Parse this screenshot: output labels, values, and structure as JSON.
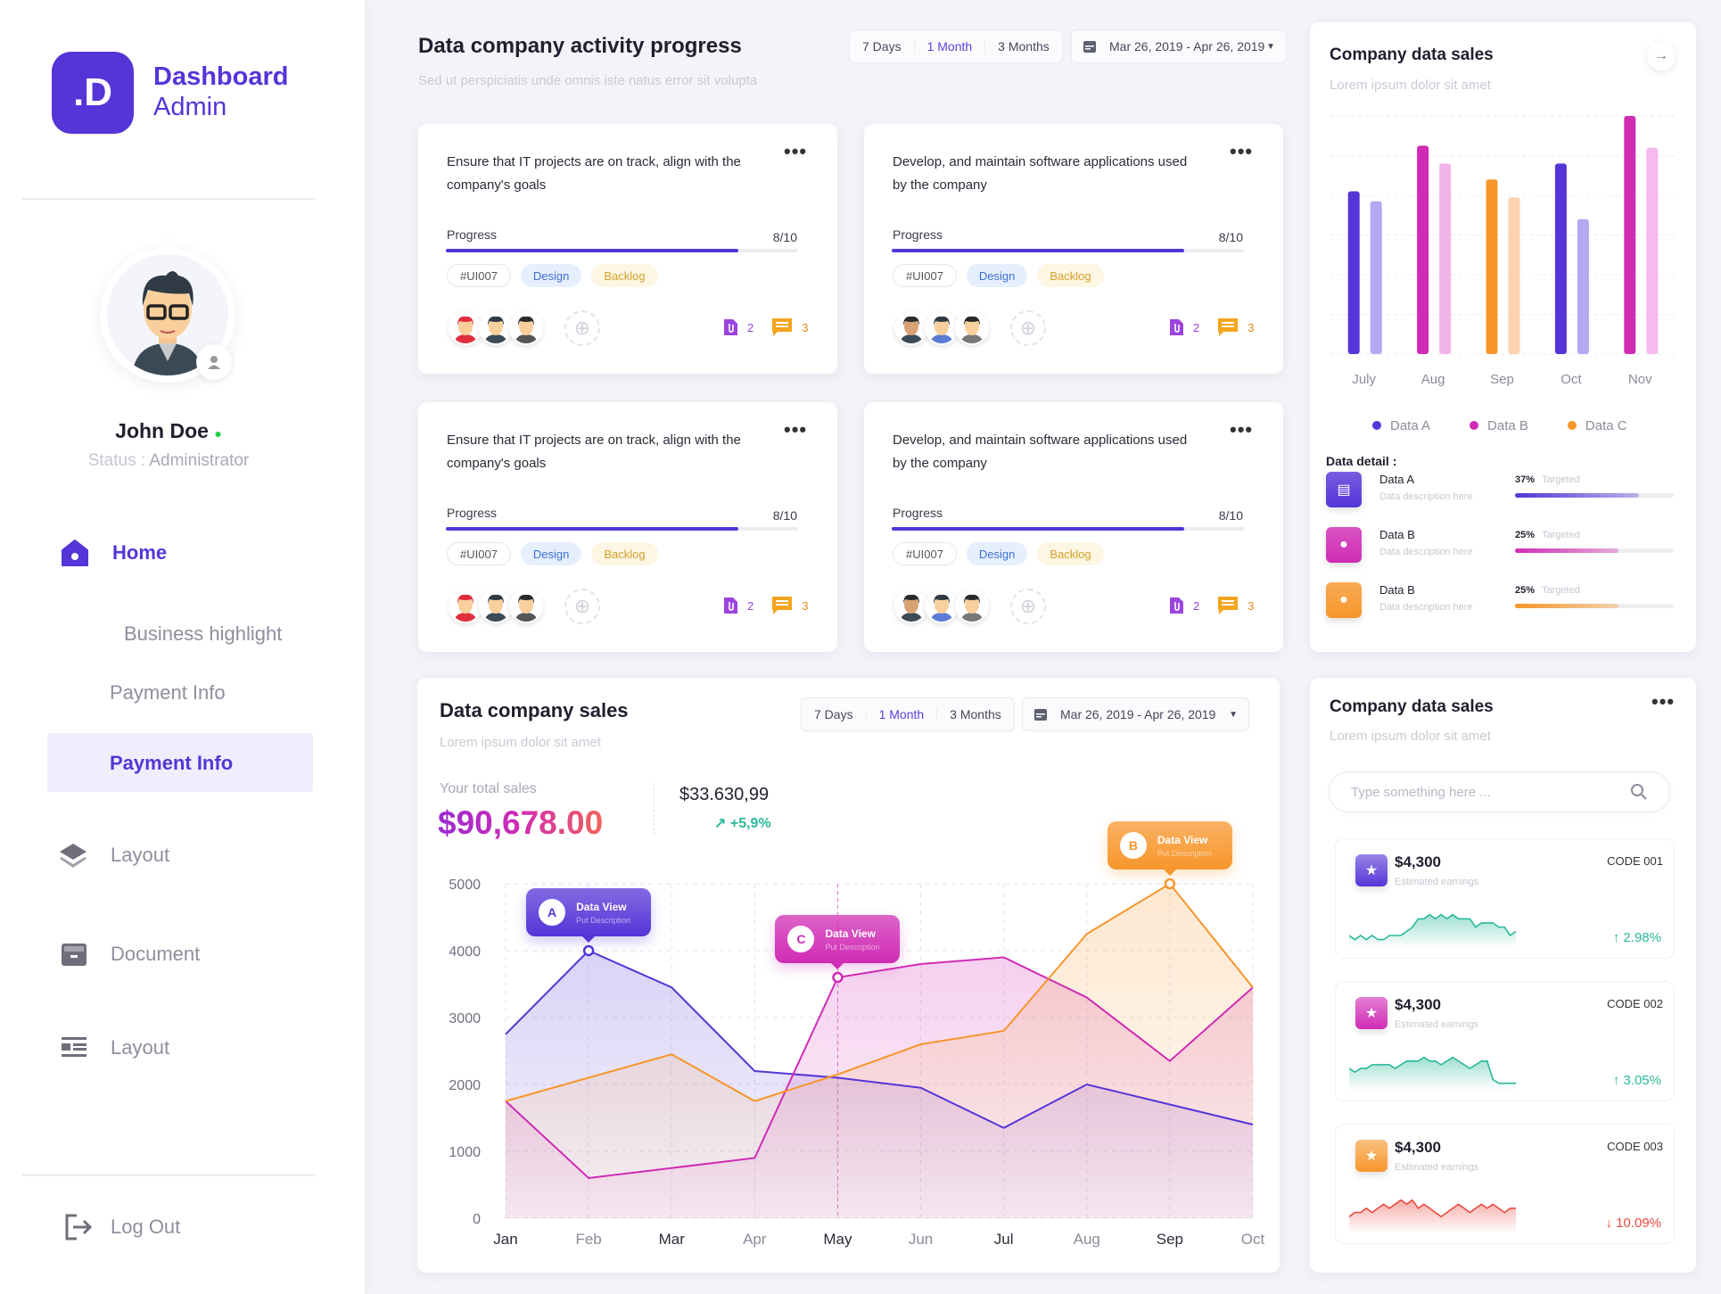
{
  "brand": {
    "logo": ".D",
    "line1": "Dashboard",
    "line2": "Admin"
  },
  "user": {
    "name": "John Doe",
    "status_label": "Status :",
    "status_value": "Administrator",
    "online_color": "#22cc44"
  },
  "nav": {
    "home": "Home",
    "business": "Business highlight",
    "payment1": "Payment Info",
    "payment_active": "Payment Info",
    "layout1": "Layout",
    "document": "Document",
    "layout2": "Layout",
    "logout": "Log Out"
  },
  "activity": {
    "title": "Data company activity progress",
    "subtitle": "Sed ut perspiciatis unde omnis iste natus error sit volupta",
    "ranges": [
      "7 Days",
      "1 Month",
      "3 Months"
    ],
    "active_range": "1 Month",
    "date_range": "Mar 26, 2019 - Apr 26, 2019",
    "cards": [
      {
        "desc": "Ensure that IT projects are on track, align with the company's goals",
        "progress_label": "Progress",
        "progress": "8/10",
        "progress_value": 0.8,
        "tags": [
          "#UI007",
          "Design",
          "Backlog"
        ],
        "attachments": "2",
        "comments": "3"
      },
      {
        "desc": "Develop, and maintain software applications used by the company",
        "progress_label": "Progress",
        "progress": "8/10",
        "progress_value": 0.8,
        "tags": [
          "#UI007",
          "Design",
          "Backlog"
        ],
        "attachments": "2",
        "comments": "3"
      },
      {
        "desc": "Ensure that IT projects are on track, align with the company's goals",
        "progress_label": "Progress",
        "progress": "8/10",
        "progress_value": 0.8,
        "tags": [
          "#UI007",
          "Design",
          "Backlog"
        ],
        "attachments": "2",
        "comments": "3"
      },
      {
        "desc": "Develop, and maintain software applications used by the company",
        "progress_label": "Progress",
        "progress": "8/10",
        "progress_value": 0.8,
        "tags": [
          "#UI007",
          "Design",
          "Backlog"
        ],
        "attachments": "2",
        "comments": "3"
      }
    ]
  },
  "bar_card": {
    "title": "Company data sales",
    "subtitle": "Lorem ipsum dolor sit amet",
    "legend": [
      "Data A",
      "Data B",
      "Data C"
    ],
    "detail_title": "Data detail :",
    "details": [
      {
        "name": "Data A",
        "desc": "Data description here",
        "pct": "37%",
        "label": "Targeted",
        "fill": 0.78,
        "color": "#5535d8"
      },
      {
        "name": "Data B",
        "desc": "Data description here",
        "pct": "25%",
        "label": "Targeted",
        "fill": 0.65,
        "color": "#d02bb4"
      },
      {
        "name": "Data B",
        "desc": "Data description here",
        "pct": "25%",
        "label": "Targeted",
        "fill": 0.65,
        "color": "#f7962b"
      }
    ]
  },
  "sales": {
    "title": "Data company sales",
    "subtitle": "Lorem ipsum dolor sit amet",
    "ranges": [
      "7 Days",
      "1 Month",
      "3 Months"
    ],
    "active_range": "1 Month",
    "date_range": "Mar 26, 2019 - Apr 26, 2019",
    "total_label": "Your total sales",
    "total": "$90,678.00",
    "secondary": "$33.630,99",
    "change": "+5,9%",
    "tooltips": [
      {
        "letter": "A",
        "title": "Data View",
        "desc": "Put Description"
      },
      {
        "letter": "C",
        "title": "Data View",
        "desc": "Put Description"
      },
      {
        "letter": "B",
        "title": "Data View",
        "desc": "Put Description"
      }
    ]
  },
  "earnings": {
    "title": "Company data sales",
    "subtitle": "Lorem ipsum dolor sit amet",
    "search_placeholder": "Type something here ...",
    "items": [
      {
        "amount": "$4,300",
        "label": "Estimated earnings",
        "code": "CODE 001",
        "change": "2.98%",
        "direction": "up",
        "color": "#2bb89a",
        "icon_color": "#5535d8",
        "spark": [
          3,
          2,
          3,
          2,
          3,
          2,
          2,
          3,
          3,
          3,
          4,
          5,
          7,
          7,
          8,
          7,
          8,
          7,
          8,
          7,
          7,
          7,
          5,
          6,
          6,
          6,
          5,
          5,
          3,
          4
        ]
      },
      {
        "amount": "$4,300",
        "label": "Estimated earnings",
        "code": "CODE 002",
        "change": "3.05%",
        "direction": "up",
        "color": "#2bb89a",
        "icon_color": "#d02bb4",
        "spark": [
          6,
          5,
          6,
          6,
          7,
          7,
          7,
          7,
          6,
          7,
          8,
          8,
          8,
          9,
          8,
          8,
          7,
          8,
          9,
          8,
          7,
          6,
          7,
          8,
          8,
          3,
          2,
          2,
          2,
          2
        ]
      },
      {
        "amount": "$4,300",
        "label": "Estimated earnings",
        "code": "CODE 003",
        "change": "10.09%",
        "direction": "down",
        "color": "#e9493f",
        "icon_color": "#f7962b",
        "spark": [
          4,
          5,
          5,
          6,
          5,
          6,
          7,
          6,
          7,
          8,
          7,
          8,
          6,
          7,
          6,
          5,
          4,
          5,
          6,
          7,
          6,
          5,
          6,
          7,
          6,
          7,
          6,
          5,
          6,
          6
        ]
      }
    ]
  },
  "chart_data": [
    {
      "type": "area",
      "x": [
        "Jan",
        "Feb",
        "Mar",
        "Apr",
        "May",
        "Jun",
        "Jul",
        "Aug",
        "Sep",
        "Oct"
      ],
      "ylim": [
        0,
        5000
      ],
      "yticks": [
        0,
        1000,
        2000,
        3000,
        4000,
        5000
      ],
      "grid": true,
      "series": [
        {
          "name": "A",
          "color": "#5535d8",
          "values": [
            2750,
            4000,
            3450,
            2200,
            2100,
            1950,
            1350,
            2000,
            1700,
            1400
          ]
        },
        {
          "name": "B",
          "color": "#f7962b",
          "values": [
            1750,
            2100,
            2450,
            1750,
            2150,
            2600,
            2800,
            4250,
            5000,
            3450
          ]
        },
        {
          "name": "C",
          "color": "#d02bb4",
          "values": [
            1750,
            600,
            750,
            900,
            3600,
            3800,
            3900,
            3300,
            2350,
            3450
          ]
        }
      ]
    },
    {
      "type": "bar",
      "categories": [
        "July",
        "Aug",
        "Sep",
        "Oct",
        "Nov"
      ],
      "legend": [
        "Data A",
        "Data B",
        "Data C"
      ],
      "legend_placement": "bottom",
      "grid": true,
      "series": [
        {
          "colors": [
            "#5535d8",
            "#d02bb4",
            "#f7962b",
            "#5535d8",
            "#d02bb4"
          ],
          "values": [
            4.1,
            5.25,
            4.4,
            4.8,
            6.0
          ]
        },
        {
          "colors": [
            "#b3a9f2",
            "#f2b3ea",
            "#fdd2b0",
            "#b3a9f2",
            "#f7b9ee"
          ],
          "values": [
            3.85,
            4.8,
            3.95,
            3.4,
            5.2
          ]
        }
      ]
    }
  ]
}
